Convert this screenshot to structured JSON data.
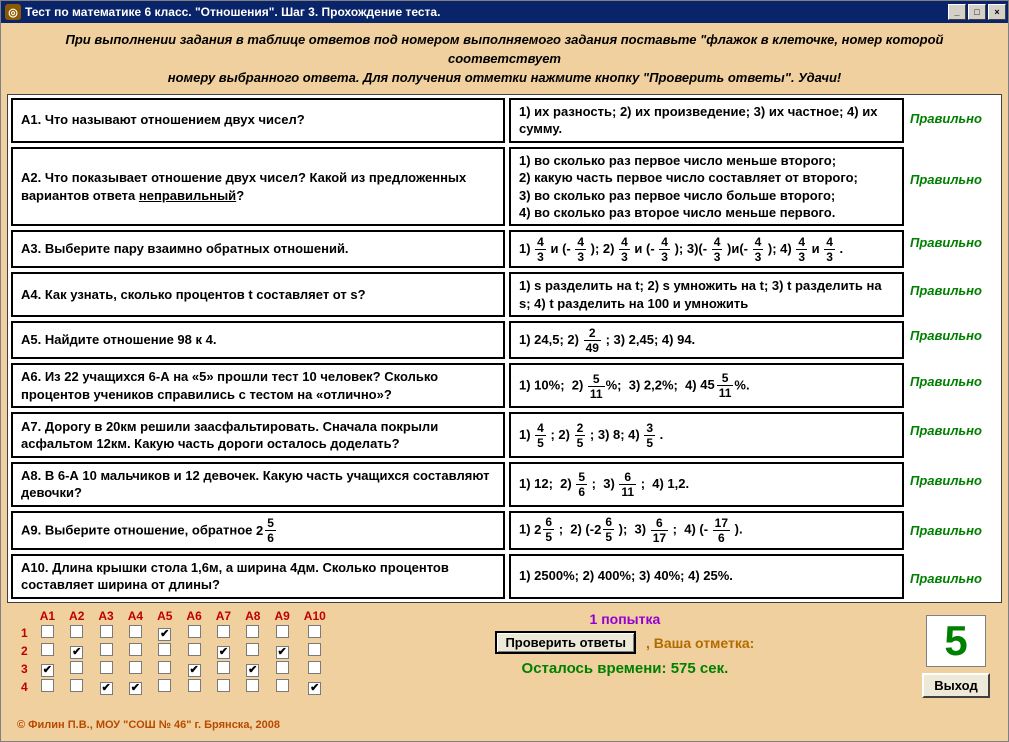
{
  "window": {
    "title": "Тест по математике 6 класс. \"Отношения\". Шаг 3. Прохождение теста."
  },
  "instruction_line1": "При выполнении задания в таблице ответов под номером выполняемого задания поставьте \"флажок в клеточке, номер которой соответствует",
  "instruction_line2": "номеру выбранного ответа. Для получения отметки нажмите кнопку \"Проверить ответы\". Удачи!",
  "columns": [
    "А1",
    "А2",
    "А3",
    "А4",
    "А5",
    "А6",
    "А7",
    "А8",
    "А9",
    "А10"
  ],
  "row_labels": [
    "1",
    "2",
    "3",
    "4"
  ],
  "checked": {
    "А1": 3,
    "А2": 2,
    "А3": 4,
    "А4": 4,
    "А5": 1,
    "А6": 3,
    "А7": 2,
    "А8": 3,
    "А9": 2,
    "А10": 4
  },
  "results": [
    "Правильно",
    "Правильно",
    "Правильно",
    "Правильно",
    "Правильно",
    "Правильно",
    "Правильно",
    "Правильно",
    "Правильно",
    "Правильно"
  ],
  "questions": {
    "q1": "А1.  Что называют отношением двух чисел?",
    "q2_a": "А2.  Что показывает отношение двух чисел? Какой из предложенных вариантов ответа ",
    "q2_b": "неправильный",
    "q2_c": "?",
    "q3": "А3.  Выберите пару взаимно обратных отношений.",
    "q4": "А4.  Как узнать, сколько процентов t составляет от s?",
    "q5": "А5.  Найдите отношение 98 к 4.",
    "q6": "А6.  Из 22 учащихся 6-А на «5» прошли тест 10 человек? Сколько процентов учеников справились с тестом на «отлично»?",
    "q7": "А7.  Дорогу в 20км решили заасфальтировать. Сначала покрыли асфальтом 12км. Какую часть дороги осталось доделать?",
    "q8": "А8.  В 6-А 10 мальчиков и 12 девочек. Какую часть учащихся составляют девочки?",
    "q9": "А9.  Выберите отношение, обратное ",
    "q10": "А10. Длина крышки стола 1,6м, а ширина 4дм. Сколько процентов составляет ширина от длины?"
  },
  "answers": {
    "a1": "1) их разность;  2) их произведение; 3) их частное; 4) их сумму.",
    "a2": "1) во сколько раз первое число меньше второго;\n2) какую часть первое число составляет от второго;\n3) во сколько раз первое число больше второго;\n4) во сколько раз второе число меньше первого.",
    "a4": "1) s разделить на t; 2) s умножить на t; 3) t разделить на s; 4) t разделить на 100 и умножить",
    "a10": "1) 2500%;  2) 400%;  3) 40%;  4) 25%."
  },
  "mid": {
    "attempt": "1 попытка",
    "check_label": "Проверить ответы",
    "mark_label": ", Ваша отметка:",
    "time_label": "Осталось времени:",
    "time_value": "575 сек."
  },
  "score": "5",
  "exit_label": "Выход",
  "credits": "© Филин П.В., МОУ \"СОШ № 46\" г. Брянска, 2008",
  "colors": {
    "titlebar_bg": "#0a246a",
    "client_bg": "#f0d09e",
    "result_ok": "#008000",
    "header_red": "#c00000",
    "attempt": "#9400d3",
    "mark_label": "#b36b00",
    "credits": "#b84a00"
  }
}
